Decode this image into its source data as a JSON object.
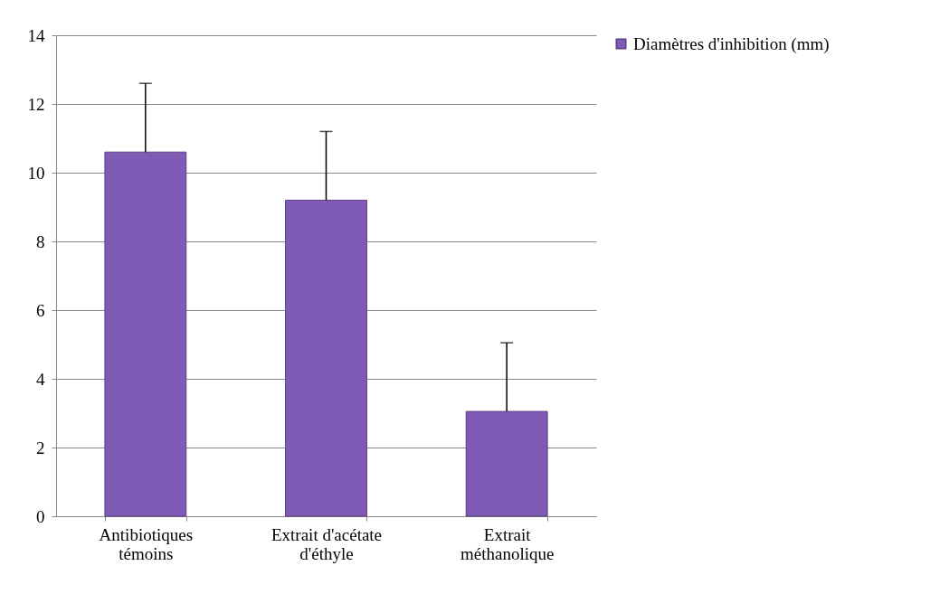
{
  "chart_data": {
    "type": "bar",
    "categories": [
      "Antibiotiques témoins",
      "Extrait d'acétate d'éthyle",
      "Extrait méthanolique"
    ],
    "series": [
      {
        "name": "Diamètres d'inhibition (mm)",
        "color": "#7f5bb5",
        "values": [
          10.6,
          9.2,
          3.05
        ],
        "errors": [
          [
            10.6,
            12.6
          ],
          [
            9.2,
            11.2
          ],
          [
            3.05,
            5.05
          ]
        ]
      }
    ],
    "ylim": [
      0,
      14
    ],
    "yticks": [
      0,
      2,
      4,
      6,
      8,
      10,
      12,
      14
    ],
    "grid": "y",
    "legend": "right"
  }
}
